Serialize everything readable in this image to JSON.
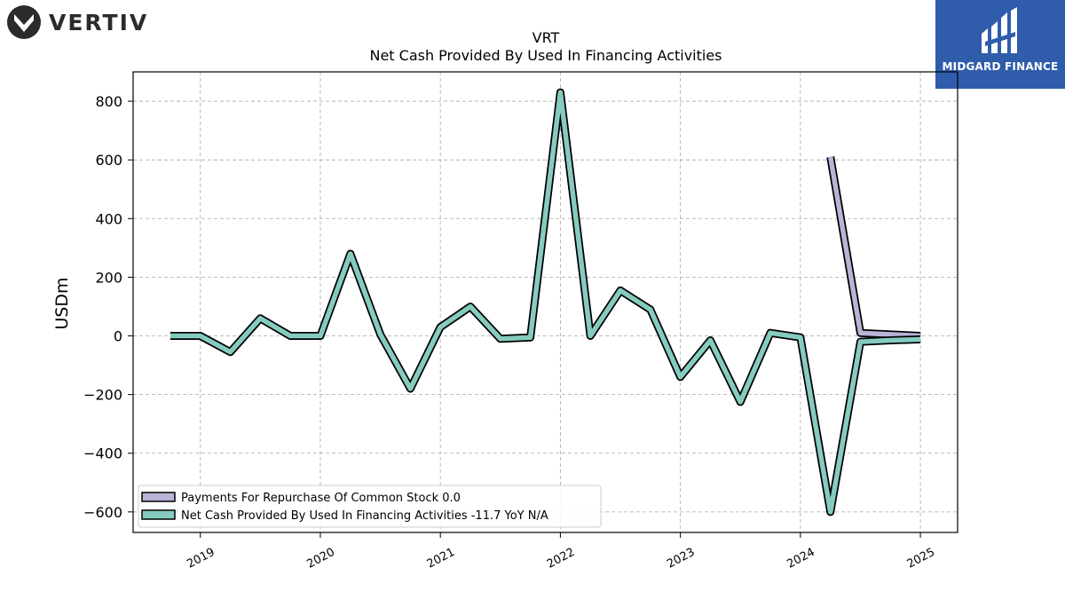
{
  "branding": {
    "left_logo_text": "VERTIV",
    "right_logo_text": "MIDGARD FINANCE",
    "right_logo_bg": "#2f5dab"
  },
  "chart_data": {
    "type": "line",
    "title": "VRT",
    "subtitle": "Net Cash Provided By Used In Financing Activities",
    "ylabel": "USDm",
    "xlabel": "",
    "ylim": [
      -670,
      900
    ],
    "xlim": [
      2018.44,
      2025.31
    ],
    "yticks": [
      -600,
      -400,
      -200,
      0,
      200,
      400,
      600,
      800
    ],
    "ytick_labels": [
      "−600",
      "−400",
      "−200",
      "0",
      "200",
      "400",
      "600",
      "800"
    ],
    "xticks": [
      2019,
      2020,
      2021,
      2022,
      2023,
      2024,
      2025
    ],
    "xtick_labels": [
      "2019",
      "2020",
      "2021",
      "2022",
      "2023",
      "2024",
      "2025"
    ],
    "grid": true,
    "legend_position": "lower-left",
    "series": [
      {
        "name": "Payments For Repurchase Of Common Stock",
        "legend_label": "Payments For Repurchase Of Common Stock  0.0",
        "color": "#b8b4d6",
        "x": [
          2024.25,
          2024.5,
          2024.75,
          2025.0
        ],
        "values": [
          610,
          10,
          5,
          0
        ]
      },
      {
        "name": "Net Cash Provided By Used In Financing Activities",
        "legend_label": "Net Cash Provided By Used In Financing Activities  -11.7 YoY N/A",
        "color": "#86cbbf",
        "x": [
          2018.75,
          2019.0,
          2019.25,
          2019.5,
          2019.75,
          2020.0,
          2020.25,
          2020.5,
          2020.75,
          2021.0,
          2021.25,
          2021.5,
          2021.75,
          2022.0,
          2022.25,
          2022.5,
          2022.75,
          2023.0,
          2023.25,
          2023.5,
          2023.75,
          2024.0,
          2024.25,
          2024.5,
          2024.75,
          2025.0
        ],
        "values": [
          0,
          0,
          -55,
          60,
          0,
          0,
          280,
          5,
          -180,
          30,
          100,
          -10,
          -5,
          830,
          0,
          155,
          90,
          -140,
          -15,
          -225,
          10,
          -5,
          -600,
          -20,
          -15,
          -11.7
        ]
      }
    ]
  }
}
